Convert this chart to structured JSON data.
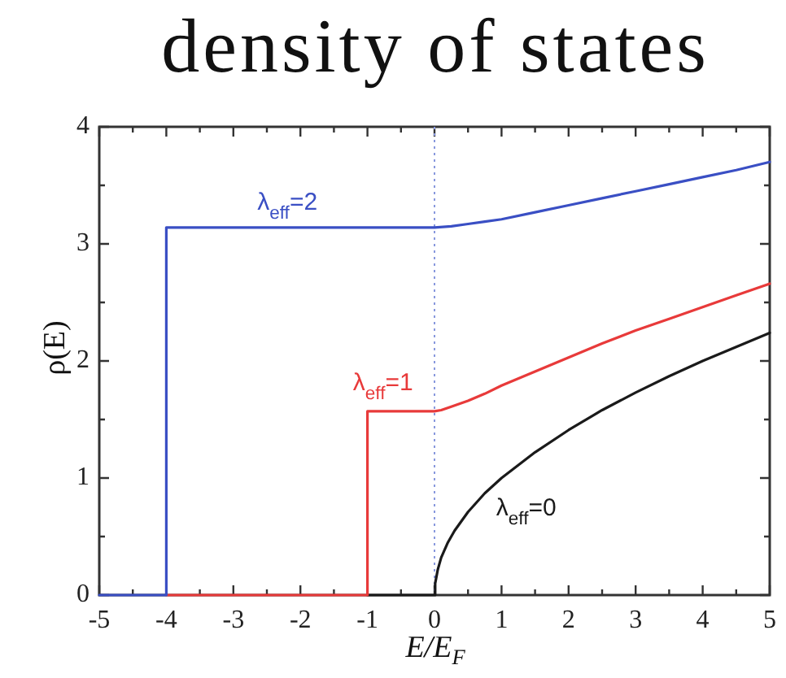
{
  "chart_data": {
    "type": "line",
    "title": "density of states",
    "xlabel": "E/E$_{F}$",
    "ylabel": "ρ(E)",
    "xlim": [
      -5,
      5
    ],
    "ylim": [
      0,
      4
    ],
    "xticks": [
      -5,
      {
        "value": -4.5,
        "label": null
      },
      -4,
      {
        "value": -3.5,
        "label": null
      },
      -3,
      {
        "value": -2.5,
        "label": null
      },
      -2,
      {
        "value": -1.5,
        "label": null
      },
      -1,
      {
        "value": -0.5,
        "label": null
      },
      0,
      {
        "value": 0.5,
        "label": null
      },
      1,
      {
        "value": 1.5,
        "label": null
      },
      2,
      {
        "value": 2.5,
        "label": null
      },
      3,
      {
        "value": 3.5,
        "label": null
      },
      4,
      {
        "value": 4.5,
        "label": null
      },
      5
    ],
    "yticks": [
      0,
      {
        "value": 0.5,
        "label": null
      },
      1,
      {
        "value": 1.5,
        "label": null
      },
      2,
      {
        "value": 2.5,
        "label": null
      },
      3,
      {
        "value": 3.5,
        "label": null
      },
      4
    ],
    "marker": "none",
    "ref_lines": [
      {
        "axis": "x",
        "value": 0,
        "color": "#8898dd",
        "line_style": "dotted"
      }
    ],
    "series": [
      {
        "name": "λ$_{eff}$=2",
        "color": "#3a4fc4",
        "x": [
          -5,
          -4,
          -4,
          0,
          0.25,
          0.5,
          0.75,
          1,
          1.5,
          2,
          2.5,
          3,
          3.5,
          4,
          4.5,
          5
        ],
        "values": [
          0,
          0,
          3.14,
          3.14,
          3.15,
          3.17,
          3.19,
          3.21,
          3.27,
          3.33,
          3.39,
          3.45,
          3.51,
          3.57,
          3.63,
          3.7
        ]
      },
      {
        "name": "λ$_{eff}$=1",
        "color": "#e83a3a",
        "x": [
          -4,
          -1,
          -1,
          0,
          0.1,
          0.25,
          0.5,
          0.75,
          1,
          1.5,
          2,
          2.5,
          3,
          3.5,
          4,
          4.5,
          5
        ],
        "values": [
          0,
          0,
          1.57,
          1.57,
          1.58,
          1.61,
          1.66,
          1.72,
          1.79,
          1.91,
          2.03,
          2.15,
          2.26,
          2.36,
          2.46,
          2.56,
          2.66
        ]
      },
      {
        "name": "λ$_{eff}$=0",
        "color": "#1a1a1a",
        "x": [
          -1,
          0,
          0.01,
          0.05,
          0.1,
          0.2,
          0.3,
          0.5,
          0.75,
          1,
          1.5,
          2,
          2.5,
          3,
          3.5,
          4,
          4.5,
          5
        ],
        "values": [
          0,
          0,
          0.1,
          0.22,
          0.32,
          0.45,
          0.55,
          0.71,
          0.87,
          1,
          1.22,
          1.41,
          1.58,
          1.73,
          1.87,
          2,
          2.12,
          2.24
        ]
      }
    ]
  }
}
